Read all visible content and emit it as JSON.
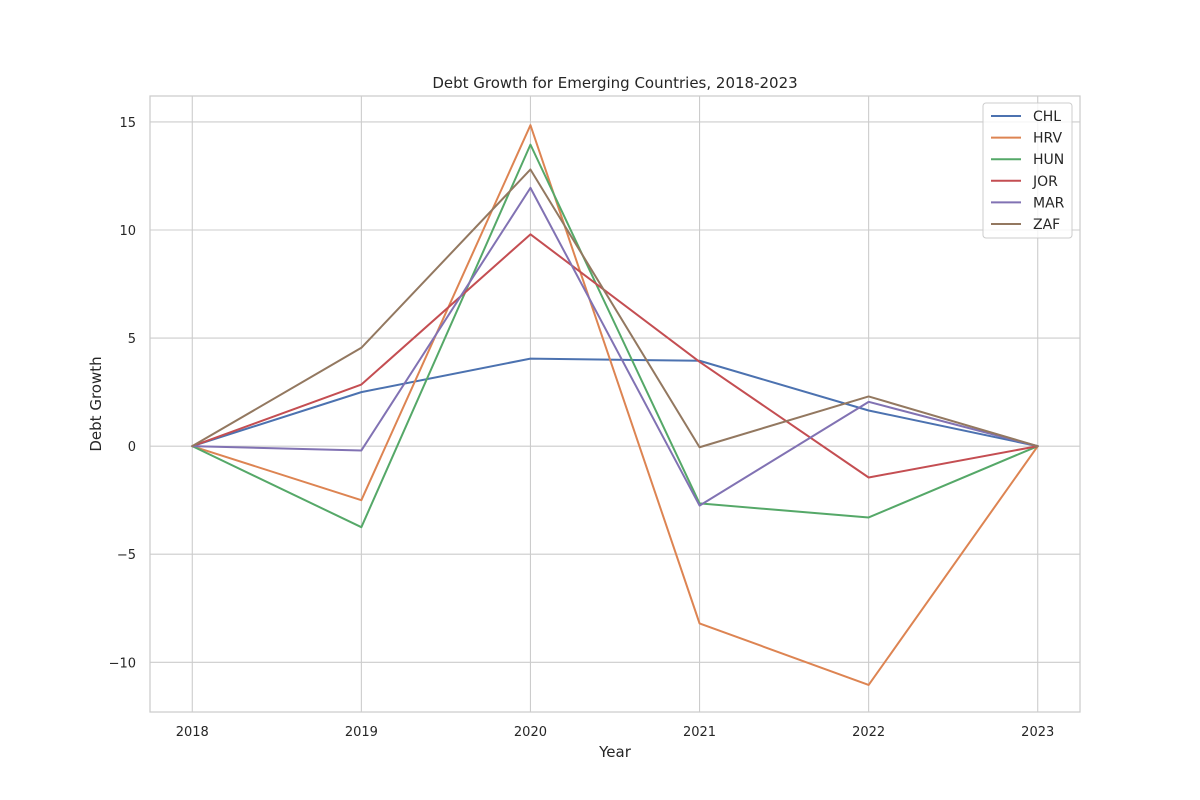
{
  "chart_data": {
    "type": "line",
    "title": "Debt Growth for Emerging Countries, 2018-2023",
    "xlabel": "Year",
    "ylabel": "Debt Growth",
    "x": [
      2018,
      2019,
      2020,
      2021,
      2022,
      2023
    ],
    "xticks": [
      "2018",
      "2019",
      "2020",
      "2021",
      "2022",
      "2023"
    ],
    "xlim": [
      2017.75,
      2023.25
    ],
    "ylim": [
      -12.3,
      16.2
    ],
    "yticks": [
      -10,
      -5,
      0,
      5,
      10,
      15
    ],
    "ytick_labels": [
      "−10",
      "−5",
      "0",
      "5",
      "10",
      "15"
    ],
    "grid": true,
    "legend_position": "top-right",
    "series": [
      {
        "name": "CHL",
        "color": "#4c72b0",
        "values": [
          0,
          2.5,
          4.05,
          3.95,
          1.65,
          0
        ]
      },
      {
        "name": "HRV",
        "color": "#dd8452",
        "values": [
          0,
          -2.5,
          14.85,
          -8.2,
          -11.05,
          0
        ]
      },
      {
        "name": "HUN",
        "color": "#55a868",
        "values": [
          0,
          -3.75,
          13.95,
          -2.65,
          -3.3,
          0
        ]
      },
      {
        "name": "JOR",
        "color": "#c44e52",
        "values": [
          0,
          2.85,
          9.8,
          3.9,
          -1.45,
          0
        ]
      },
      {
        "name": "MAR",
        "color": "#8172b3",
        "values": [
          0,
          -0.2,
          11.95,
          -2.75,
          2.05,
          0
        ]
      },
      {
        "name": "ZAF",
        "color": "#937860",
        "values": [
          0,
          4.55,
          12.8,
          -0.05,
          2.3,
          0
        ]
      }
    ]
  }
}
